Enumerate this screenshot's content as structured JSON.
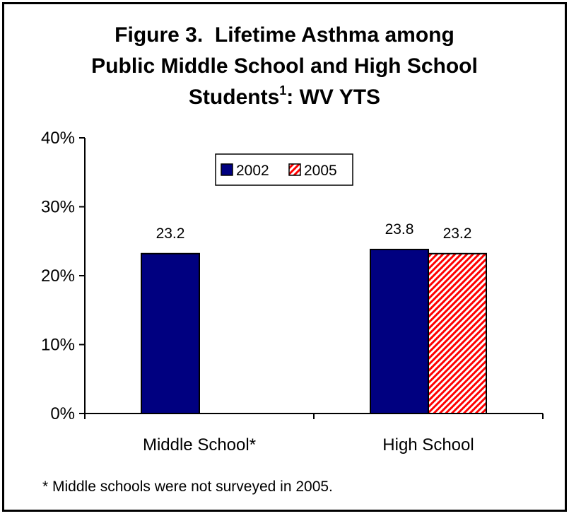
{
  "chart_data": {
    "type": "bar",
    "title_main": "Figure 3.  Lifetime Asthma among Public Middle School and High School Students",
    "title_sup": "1",
    "title_end": ": WV YTS",
    "categories": [
      "Middle School*",
      "High School"
    ],
    "series": [
      {
        "name": "2002",
        "values": [
          23.2,
          23.8
        ],
        "labels": [
          "23.2",
          "23.8"
        ],
        "color": "#000080",
        "pattern": "solid"
      },
      {
        "name": "2005",
        "values": [
          null,
          23.2
        ],
        "labels": [
          "",
          "23.2"
        ],
        "color": "#ff0000",
        "pattern": "hatch"
      }
    ],
    "yticks": [
      "0%",
      "10%",
      "20%",
      "30%",
      "40%"
    ],
    "ylim": [
      0,
      40
    ],
    "legend_position": "top-center",
    "grid": false,
    "footnote": "* Middle schools were not surveyed in 2005."
  }
}
